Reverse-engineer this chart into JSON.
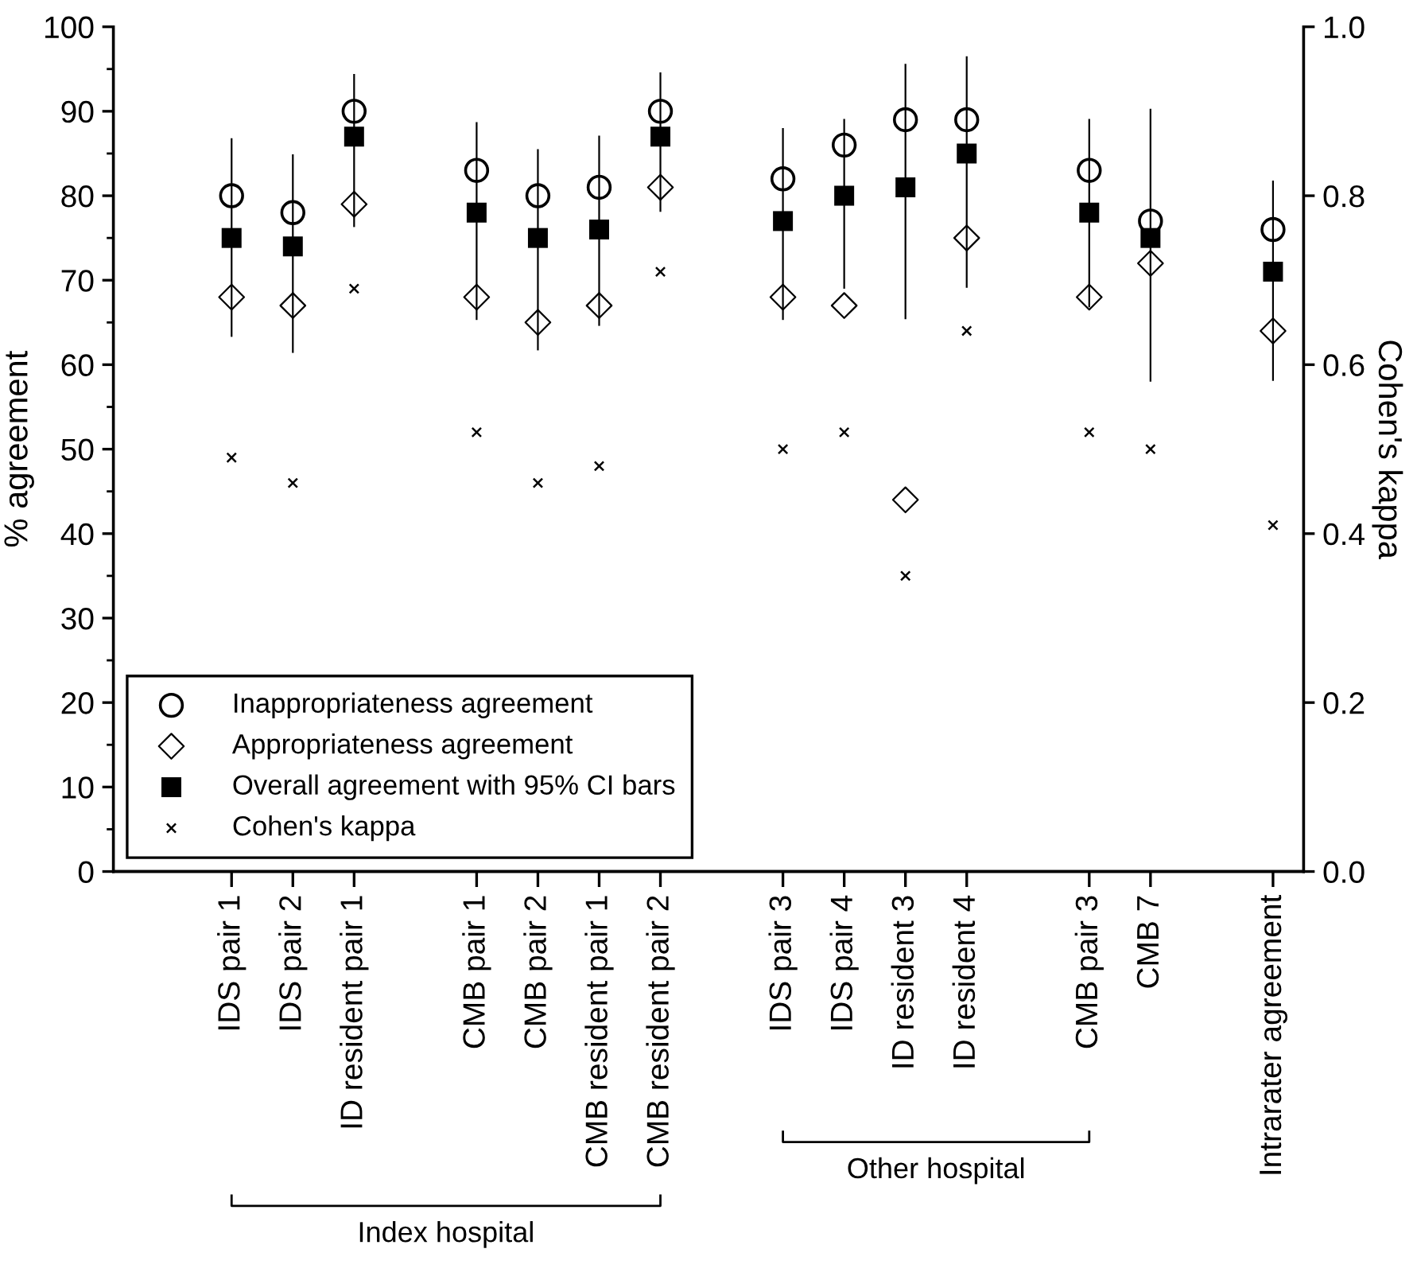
{
  "chart_data": {
    "type": "scatter",
    "ylabel": "% agreement",
    "y2label": "Cohen's kappa",
    "categories": [
      "IDS pair 1",
      "IDS pair 2",
      "ID resident pair 1",
      null,
      "CMB pair 1",
      "CMB pair 2",
      "CMB resident pair 1",
      "CMB resident pair 2",
      null,
      "IDS pair 3",
      "IDS pair 4",
      "ID resident 3",
      "ID resident 4",
      null,
      "CMB pair 3",
      "CMB 7",
      null,
      "Intrarater agreement"
    ],
    "series": [
      {
        "name": "Inappropriateness agreement",
        "color": "#000000",
        "marker": "circle",
        "values": [
          80,
          78,
          90,
          null,
          83,
          80,
          81,
          90,
          null,
          82,
          86,
          89,
          89,
          null,
          83,
          77,
          null,
          76
        ]
      },
      {
        "name": "Appropriateness agreement",
        "color": "#000000",
        "marker": "diamond",
        "values": [
          68,
          67,
          79,
          null,
          68,
          65,
          67,
          81,
          null,
          68,
          67,
          44,
          75,
          null,
          68,
          72,
          null,
          64
        ]
      },
      {
        "name": "Overall agreement with 95% CI bars",
        "color": "#000000",
        "marker": "square",
        "values": [
          75,
          74,
          87,
          null,
          78,
          75,
          76,
          87,
          null,
          77,
          80,
          81,
          85,
          null,
          78,
          75,
          null,
          71
        ],
        "errors": [
          [
            63.4,
            86.7
          ],
          [
            61.5,
            84.8
          ],
          [
            76.4,
            94.3
          ],
          null,
          [
            65.4,
            88.6
          ],
          [
            61.8,
            85.4
          ],
          [
            64.7,
            87.0
          ],
          [
            78.2,
            94.5
          ],
          null,
          [
            65.4,
            87.9
          ],
          [
            69.1,
            89.0
          ],
          [
            65.5,
            95.5
          ],
          [
            69.2,
            96.4
          ],
          null,
          [
            66.9,
            89.0
          ],
          [
            58.1,
            90.2
          ],
          null,
          [
            58.2,
            81.7
          ]
        ]
      },
      {
        "name": "Cohen's kappa",
        "color": "#000000",
        "marker": "cross",
        "axis": "y2",
        "values": [
          0.49,
          0.46,
          0.69,
          null,
          0.52,
          0.46,
          0.48,
          0.71,
          null,
          0.5,
          0.52,
          0.35,
          0.64,
          null,
          0.52,
          0.5,
          null,
          0.41
        ]
      }
    ],
    "ylim": [
      0,
      100
    ],
    "yticks": [
      0,
      10,
      20,
      30,
      40,
      50,
      60,
      70,
      80,
      90,
      100
    ],
    "y2lim": [
      0,
      1
    ],
    "y2ticks": [
      {
        "value": 0,
        "label": "0.0"
      },
      0.2,
      0.4,
      0.6,
      0.8,
      {
        "value": 1,
        "label": "1.0"
      }
    ],
    "legend": "bottom left",
    "grid": false,
    "annotations": [
      "Index hospital",
      "Other hospital"
    ]
  }
}
